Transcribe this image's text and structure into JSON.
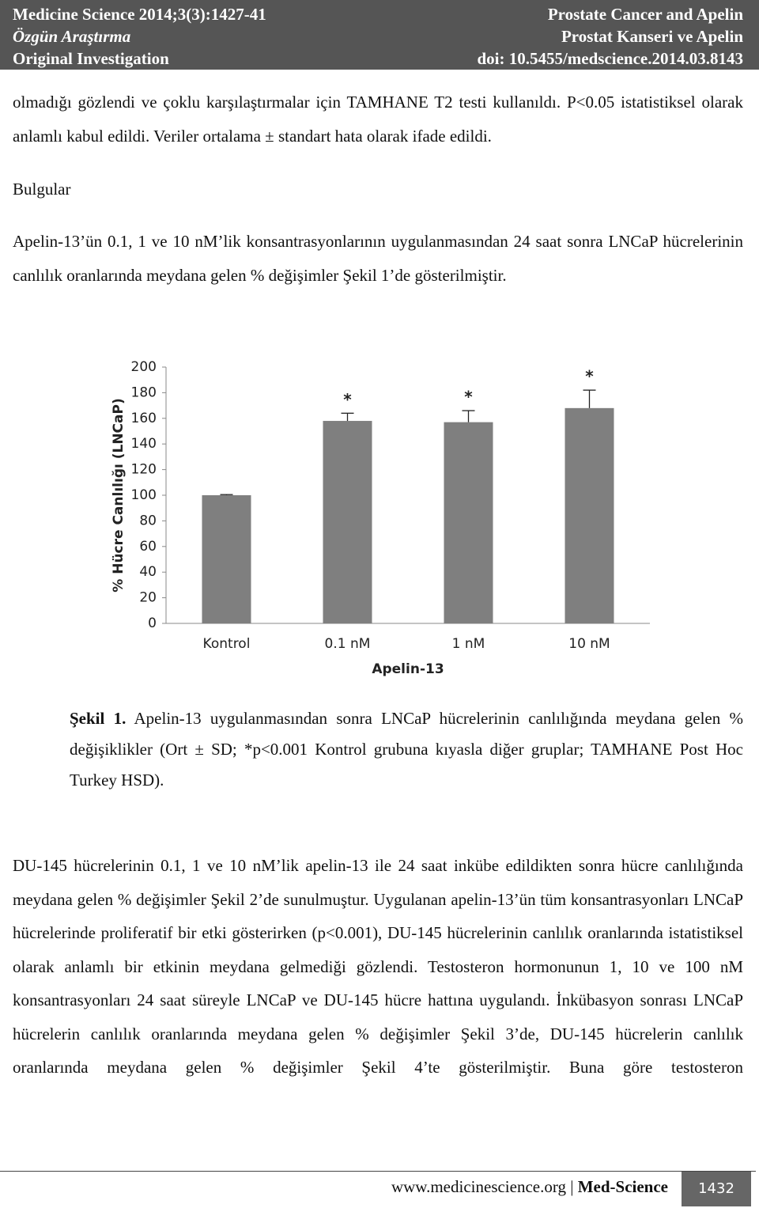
{
  "header": {
    "left": [
      "Medicine Science 2014;3(3):1427-41",
      "Özgün Araştırma",
      "Original Investigation"
    ],
    "right": [
      "Prostate Cancer and Apelin",
      "Prostat Kanseri ve Apelin",
      "doi: 10.5455/medscience.2014.03.8143"
    ]
  },
  "paragraph1": "olmadığı gözlendi ve çoklu karşılaştırmalar için TAMHANE T2 testi kullanıldı. P<0.05 istatistiksel olarak anlamlı kabul edildi. Veriler ortalama ± standart hata olarak ifade edildi.",
  "heading": "Bulgular",
  "paragraph2": "Apelin-13’ün 0.1, 1 ve 10 nM’lik konsantrasyonlarının uygulanmasından 24 saat sonra LNCaP hücrelerinin canlılık oranlarında meydana gelen % değişimler Şekil 1’de gösterilmiştir.",
  "chart_data": {
    "type": "bar",
    "categories": [
      "Kontrol",
      "0.1 nM",
      "1 nM",
      "10 nM"
    ],
    "values": [
      100,
      158,
      157,
      168
    ],
    "errors": [
      0.5,
      6,
      9,
      14
    ],
    "annotations": [
      null,
      "*",
      "*",
      "*"
    ],
    "color": "#7f7f7f",
    "ylim": [
      0,
      200
    ],
    "yticks": [
      0,
      20,
      40,
      60,
      80,
      100,
      120,
      140,
      160,
      180,
      200
    ],
    "ylabel": "% Hücre Canlılığı (LNCaP)",
    "xlabel": "Apelin-13",
    "grid": false
  },
  "caption": {
    "label": "Şekil 1.",
    "text": "Apelin-13 uygulanmasından sonra LNCaP hücrelerinin canlılığında meydana gelen % değişiklikler (Ort ± SD; *p<0.001 Kontrol grubuna kıyasla diğer gruplar; TAMHANE Post Hoc Turkey HSD)."
  },
  "paragraph3": "DU-145 hücrelerinin 0.1, 1 ve 10 nM’lik apelin-13 ile 24 saat inkübe edildikten sonra hücre canlılığında meydana gelen % değişimler Şekil 2’de sunulmuştur. Uygulanan apelin-13’ün tüm konsantrasyonları LNCaP hücrelerinde proliferatif bir etki gösterirken (p<0.001), DU-145 hücrelerinin canlılık oranlarında istatistiksel olarak anlamlı bir etkinin meydana gelmediği gözlendi. Testosteron hormonunun 1, 10 ve 100 nM konsantrasyonları 24 saat süreyle LNCaP ve DU-145 hücre hattına uygulandı. İnkübasyon sonrası LNCaP hücrelerin canlılık oranlarında meydana gelen % değişimler Şekil 3’de, DU-145 hücrelerin canlılık oranlarında meydana gelen % değişimler Şekil 4’te gösterilmiştir. Buna göre testosteron",
  "footer": {
    "url": "www.medicinescience.org",
    "journal": "Med-Science",
    "page": "1432"
  }
}
